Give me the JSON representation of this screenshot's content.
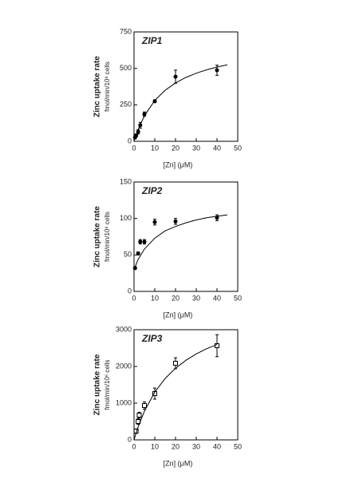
{
  "chart_data": [
    {
      "type": "scatter",
      "title": "ZIP1",
      "xlabel": "[Zn] (μM)",
      "ylabel": "Zinc uptake rate",
      "ylabel_units": "fmol/min/10⁶ cells",
      "xlim": [
        0,
        50
      ],
      "xticks": [
        0,
        10,
        20,
        30,
        40,
        50
      ],
      "ylim": [
        0,
        750
      ],
      "yticks": [
        0,
        250,
        500,
        750
      ],
      "series": [
        {
          "marker": "circle",
          "color": "#000000",
          "x": [
            0.5,
            1,
            2,
            3,
            5,
            10,
            20,
            40
          ],
          "values": [
            27,
            40,
            65,
            110,
            186,
            275,
            443,
            487
          ],
          "errors": [
            10,
            10,
            15,
            20,
            15,
            10,
            45,
            35
          ]
        },
        {
          "marker": "none",
          "color": "#000000",
          "x": [
            0,
            1,
            2,
            5,
            10,
            15,
            20,
            25,
            30,
            35,
            40,
            45
          ],
          "values": [
            0,
            44,
            82,
            175,
            280,
            350,
            400,
            438,
            467,
            490,
            509,
            525
          ]
        }
      ]
    },
    {
      "type": "scatter",
      "title": "ZIP2",
      "xlabel": "[Zn] (μM)",
      "ylabel": "Zinc uptake rate",
      "ylabel_units": "fmol/min/10⁶ cells",
      "xlim": [
        0,
        50
      ],
      "xticks": [
        0,
        10,
        20,
        30,
        40,
        50
      ],
      "ylim": [
        0,
        150
      ],
      "yticks": [
        0,
        50,
        100,
        150
      ],
      "series": [
        {
          "marker": "circle",
          "color": "#000000",
          "x": [
            0.5,
            2,
            3,
            5,
            10,
            20,
            40
          ],
          "values": [
            32,
            52,
            68,
            68,
            95,
            96,
            101
          ],
          "errors": [
            2,
            2,
            3,
            3,
            4,
            4,
            4
          ]
        },
        {
          "marker": "none",
          "color": "#000000",
          "x": [
            0,
            1,
            2,
            5,
            10,
            15,
            20,
            25,
            30,
            35,
            40,
            45
          ],
          "values": [
            30,
            37,
            44,
            58,
            73,
            83,
            89,
            94,
            98,
            101,
            103,
            105
          ]
        }
      ]
    },
    {
      "type": "scatter",
      "title": "ZIP3",
      "xlabel": "[Zn] (μM)",
      "ylabel": "Zinc uptake rate",
      "ylabel_units": "fmol/min/10⁶ cells",
      "xlim": [
        0,
        50
      ],
      "xticks": [
        0,
        10,
        20,
        30,
        40,
        50
      ],
      "ylim": [
        0,
        3000
      ],
      "yticks": [
        0,
        1000,
        2000,
        3000
      ],
      "series": [
        {
          "marker": "square",
          "color": "#000000",
          "x": [
            1,
            2,
            2.5,
            5,
            10,
            20,
            40
          ],
          "values": [
            240,
            500,
            674,
            935,
            1260,
            2087,
            2565
          ],
          "errors": [
            60,
            80,
            80,
            100,
            150,
            150,
            300
          ]
        },
        {
          "marker": "none",
          "color": "#000000",
          "x": [
            0,
            1,
            2,
            5,
            10,
            15,
            20,
            25,
            30,
            35,
            40
          ],
          "values": [
            0,
            186,
            355,
            780,
            1300,
            1671,
            1950,
            2167,
            2340,
            2482,
            2600
          ]
        }
      ]
    }
  ]
}
